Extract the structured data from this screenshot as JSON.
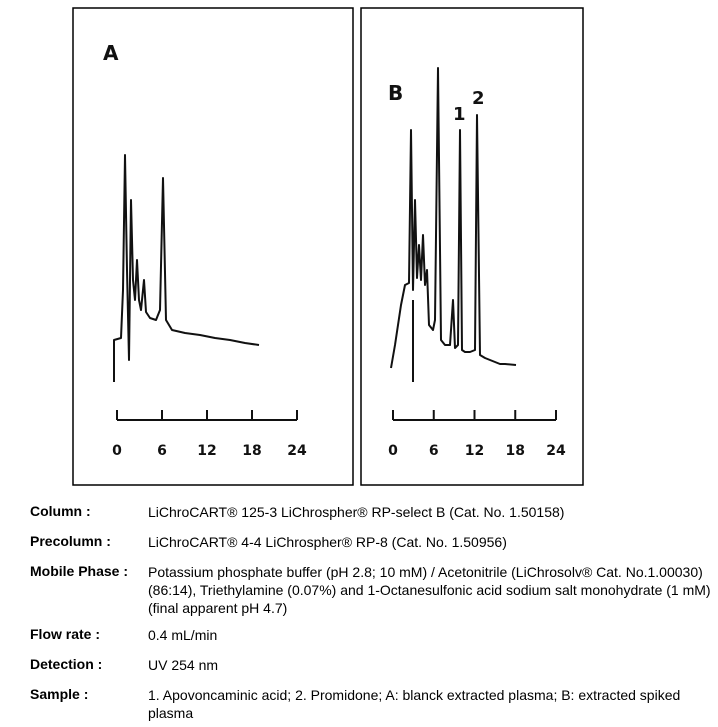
{
  "figure": {
    "panels": [
      {
        "label": "A",
        "axis_ticks": [
          0,
          6,
          12,
          18,
          24
        ]
      },
      {
        "label": "B",
        "peak_labels": [
          "1",
          "2"
        ],
        "axis_ticks": [
          0,
          6,
          12,
          18,
          24
        ]
      }
    ]
  },
  "table": {
    "rows": [
      [
        "Column :",
        "LiChroCART® 125-3 LiChrospher® RP-select B  (Cat. No. 1.50158)"
      ],
      [
        "Precolumn :",
        "LiChroCART® 4-4 LiChrospher® RP-8  (Cat. No. 1.50956)"
      ],
      [
        "Mobile Phase :",
        "Potassium phosphate buffer (pH 2.8; 10 mM) / Acetonitrile (LiChrosolv® Cat. No.1.00030) (86:14), Triethylamine (0.07%) and 1-Octanesulfonic acid sodium salt monohydrate (1 mM) (final apparent pH 4.7)"
      ],
      [
        "Flow rate :",
        "0.4 mL/min"
      ],
      [
        "Detection :",
        "UV 254 nm"
      ],
      [
        "Sample :",
        "1. Apovoncaminic acid; 2. Promidone; A: blanck extracted plasma; B: extracted spiked plasma"
      ]
    ]
  }
}
